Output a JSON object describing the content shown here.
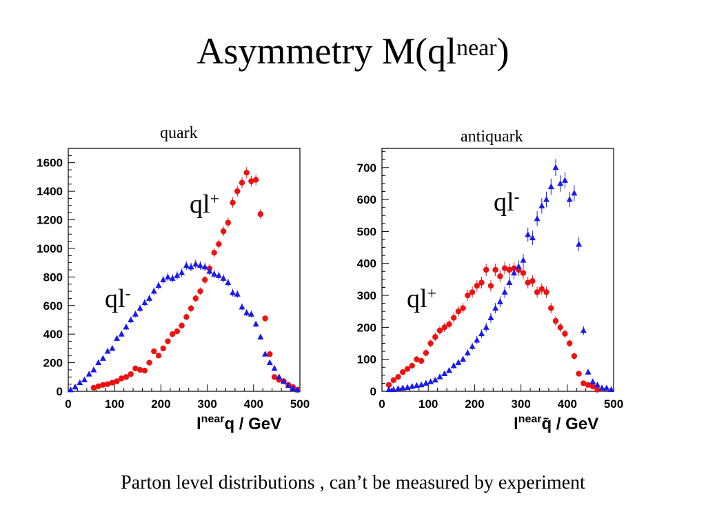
{
  "slide": {
    "title_main": "Asymmetry M(ql",
    "title_sup": "near",
    "title_end": ")",
    "footnote": "Parton level distributions , can’t be measured by experiment"
  },
  "colors": {
    "red_series": "#ee1111",
    "blue_series": "#1a1aee"
  },
  "chart_data": [
    {
      "type": "scatter",
      "title": "quark",
      "xlabel": "l^{near} q / GeV",
      "xlabel_parts": {
        "base": "l",
        "sup": "near",
        "rest": "q / GeV"
      },
      "xlim": [
        0,
        500
      ],
      "ylim": [
        0,
        1700
      ],
      "xticks": [
        0,
        100,
        200,
        300,
        400,
        500
      ],
      "yticks": [
        0,
        200,
        400,
        600,
        800,
        1000,
        1200,
        1400,
        1600
      ],
      "grid": false,
      "series": [
        {
          "name": "ql+",
          "label_base": "ql",
          "label_sup": "+",
          "marker": "circle",
          "color": "#ee1111",
          "x": [
            55,
            65,
            75,
            85,
            95,
            105,
            115,
            125,
            135,
            145,
            155,
            165,
            175,
            185,
            195,
            205,
            215,
            225,
            235,
            245,
            255,
            265,
            275,
            285,
            295,
            305,
            315,
            325,
            335,
            345,
            355,
            365,
            375,
            385,
            395,
            405,
            415,
            425,
            435,
            445,
            455,
            465,
            475,
            485,
            495
          ],
          "y": [
            25,
            35,
            45,
            50,
            60,
            70,
            90,
            100,
            120,
            160,
            150,
            145,
            200,
            280,
            250,
            300,
            350,
            400,
            420,
            460,
            520,
            580,
            650,
            700,
            780,
            860,
            970,
            1030,
            1120,
            1180,
            1320,
            1400,
            1460,
            1530,
            1470,
            1480,
            1240,
            510,
            260,
            100,
            80,
            70,
            45,
            30,
            10
          ]
        },
        {
          "name": "ql-",
          "label_base": "ql",
          "label_sup": "-",
          "marker": "triangle",
          "color": "#1a1aee",
          "x": [
            5,
            15,
            25,
            35,
            45,
            55,
            65,
            75,
            85,
            95,
            105,
            115,
            125,
            135,
            145,
            155,
            165,
            175,
            185,
            195,
            205,
            215,
            225,
            235,
            245,
            255,
            265,
            275,
            285,
            295,
            305,
            315,
            325,
            335,
            345,
            355,
            365,
            375,
            385,
            395,
            405,
            415,
            425,
            435,
            445,
            455,
            465,
            475,
            485,
            495
          ],
          "y": [
            10,
            30,
            60,
            80,
            120,
            150,
            200,
            230,
            280,
            300,
            370,
            400,
            450,
            500,
            540,
            580,
            620,
            650,
            700,
            740,
            780,
            800,
            790,
            810,
            830,
            880,
            870,
            890,
            880,
            870,
            840,
            820,
            810,
            790,
            760,
            690,
            680,
            590,
            550,
            540,
            470,
            380,
            260,
            200,
            160,
            100,
            70,
            40,
            20,
            10
          ]
        }
      ]
    },
    {
      "type": "scatter",
      "title": "antiquark",
      "xlabel": "l^{near} q̄ / GeV",
      "xlabel_parts": {
        "base": "l",
        "sup": "near",
        "rest": "q̄ / GeV"
      },
      "xlim": [
        0,
        500
      ],
      "ylim": [
        0,
        760
      ],
      "xticks": [
        0,
        100,
        200,
        300,
        400,
        500
      ],
      "yticks": [
        0,
        100,
        200,
        300,
        400,
        500,
        600,
        700
      ],
      "grid": false,
      "series": [
        {
          "name": "ql+",
          "label_base": "ql",
          "label_sup": "+",
          "marker": "circle",
          "color": "#ee1111",
          "x": [
            15,
            25,
            35,
            45,
            55,
            65,
            75,
            85,
            95,
            105,
            115,
            125,
            135,
            145,
            155,
            165,
            175,
            185,
            195,
            205,
            215,
            225,
            235,
            245,
            255,
            265,
            275,
            285,
            295,
            305,
            315,
            325,
            335,
            345,
            355,
            365,
            375,
            385,
            395,
            405,
            415,
            425,
            435,
            445,
            455,
            465
          ],
          "y": [
            20,
            35,
            45,
            60,
            70,
            80,
            100,
            95,
            120,
            150,
            170,
            190,
            200,
            210,
            230,
            250,
            260,
            300,
            310,
            330,
            340,
            380,
            330,
            380,
            360,
            385,
            380,
            385,
            380,
            370,
            340,
            345,
            310,
            320,
            310,
            260,
            220,
            200,
            180,
            150,
            110,
            55,
            25,
            20,
            15,
            5
          ],
          "y_override_note": ""
        },
        {
          "name": "ql-",
          "label_base": "ql",
          "label_sup": "-",
          "marker": "triangle",
          "color": "#1a1aee",
          "x": [
            15,
            25,
            35,
            45,
            55,
            65,
            75,
            85,
            95,
            105,
            115,
            125,
            135,
            145,
            155,
            165,
            175,
            185,
            195,
            205,
            215,
            225,
            235,
            245,
            255,
            265,
            275,
            285,
            295,
            305,
            315,
            325,
            335,
            345,
            355,
            365,
            375,
            385,
            395,
            405,
            415,
            425,
            435,
            445,
            455,
            465,
            475,
            485,
            495
          ],
          "y": [
            5,
            5,
            8,
            10,
            12,
            15,
            18,
            20,
            25,
            30,
            35,
            45,
            55,
            65,
            80,
            90,
            100,
            120,
            140,
            160,
            180,
            200,
            230,
            260,
            280,
            310,
            340,
            370,
            390,
            410,
            490,
            480,
            540,
            580,
            600,
            640,
            700,
            650,
            660,
            600,
            620,
            460,
            190,
            60,
            30,
            20,
            10,
            10,
            5
          ]
        }
      ]
    }
  ]
}
